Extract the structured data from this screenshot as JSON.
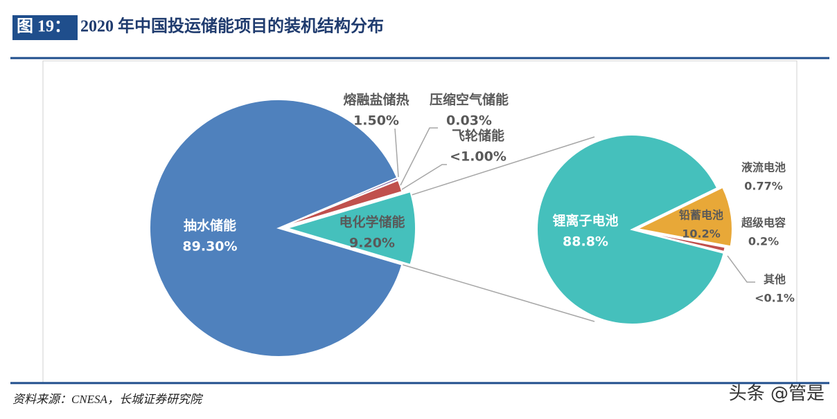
{
  "header": {
    "figure_label": "图 19：",
    "title": "2020 年中国投运储能项目的装机结构分布"
  },
  "source": "资料来源：CNESA，长城证券研究院",
  "watermark": "头条 @管是",
  "chart_data": [
    {
      "type": "pie",
      "categories": [
        "抽水储能",
        "电化学储能",
        "熔融盐储热",
        "压缩空气储能",
        "飞轮储能"
      ],
      "values": [
        89.3,
        9.2,
        1.5,
        0.03,
        0.3
      ],
      "value_labels": [
        "89.30%",
        "9.20%",
        "1.50%",
        "0.03%",
        "<1.00%"
      ],
      "colors": [
        "#4f81bd",
        "#45c0bc",
        "#c0504d",
        "#9a9a9a",
        "#8064a2"
      ]
    },
    {
      "type": "pie",
      "categories": [
        "锂离子电池",
        "铅蓄电池",
        "液流电池",
        "超级电容",
        "其他"
      ],
      "values": [
        88.8,
        10.2,
        0.77,
        0.2,
        0.05
      ],
      "value_labels": [
        "88.8%",
        "10.2%",
        "0.77%",
        "0.2%",
        "<0.1%"
      ],
      "colors": [
        "#45c0bc",
        "#e8a838",
        "#c0504d",
        "#9a9a9a",
        "#8064a2"
      ]
    }
  ]
}
